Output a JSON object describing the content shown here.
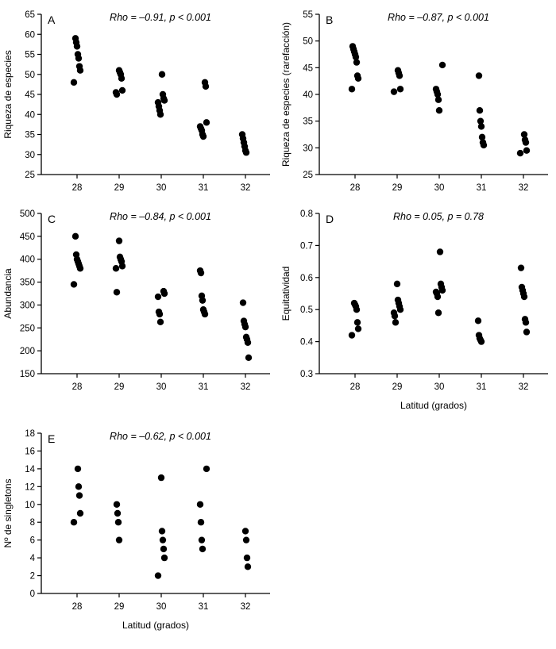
{
  "figure": {
    "background": "#ffffff",
    "dot_color": "#000000",
    "axis_color": "#000000"
  },
  "chart_data": [
    {
      "type": "scatter",
      "panel_label": "A",
      "annotation": "Rho = –0.91, p < 0.001",
      "ylabel": "Riqueza de especies",
      "xlabel": "",
      "ylim": [
        25,
        65
      ],
      "ytick_step": 5,
      "y_decimals": 0,
      "x_categories": [
        28,
        29,
        30,
        31,
        32
      ],
      "points": [
        [
          28,
          48
        ],
        [
          28,
          51
        ],
        [
          28,
          52
        ],
        [
          28,
          54
        ],
        [
          28,
          55
        ],
        [
          28,
          57
        ],
        [
          28,
          58
        ],
        [
          28,
          59
        ],
        [
          29,
          45
        ],
        [
          29,
          45.5
        ],
        [
          29,
          46
        ],
        [
          29,
          49
        ],
        [
          29,
          50
        ],
        [
          29,
          50.5
        ],
        [
          29,
          51
        ],
        [
          30,
          40
        ],
        [
          30,
          41
        ],
        [
          30,
          42
        ],
        [
          30,
          43
        ],
        [
          30,
          43.5
        ],
        [
          30,
          44
        ],
        [
          30,
          45
        ],
        [
          30,
          50
        ],
        [
          31,
          34.5
        ],
        [
          31,
          35
        ],
        [
          31,
          36
        ],
        [
          31,
          36.5
        ],
        [
          31,
          37
        ],
        [
          31,
          38
        ],
        [
          31,
          47
        ],
        [
          31,
          48
        ],
        [
          32,
          30.5
        ],
        [
          32,
          31
        ],
        [
          32,
          32
        ],
        [
          32,
          33
        ],
        [
          32,
          34
        ],
        [
          32,
          35
        ]
      ]
    },
    {
      "type": "scatter",
      "panel_label": "B",
      "annotation": "Rho = –0.87, p < 0.001",
      "ylabel": "Riqueza de especies (rarefacción)",
      "xlabel": "",
      "ylim": [
        25,
        55
      ],
      "ytick_step": 5,
      "y_decimals": 0,
      "x_categories": [
        28,
        29,
        30,
        31,
        32
      ],
      "points": [
        [
          28,
          41
        ],
        [
          28,
          43
        ],
        [
          28,
          43.5
        ],
        [
          28,
          46
        ],
        [
          28,
          47
        ],
        [
          28,
          47.5
        ],
        [
          28,
          48
        ],
        [
          28,
          48.5
        ],
        [
          28,
          49
        ],
        [
          29,
          40.5
        ],
        [
          29,
          41
        ],
        [
          29,
          43.5
        ],
        [
          29,
          44
        ],
        [
          29,
          44.5
        ],
        [
          30,
          37
        ],
        [
          30,
          39
        ],
        [
          30,
          40
        ],
        [
          30,
          40.5
        ],
        [
          30,
          41
        ],
        [
          30,
          45.5
        ],
        [
          31,
          30.5
        ],
        [
          31,
          31
        ],
        [
          31,
          32
        ],
        [
          31,
          34
        ],
        [
          31,
          35
        ],
        [
          31,
          37
        ],
        [
          31,
          43.5
        ],
        [
          32,
          29
        ],
        [
          32,
          29.5
        ],
        [
          32,
          31
        ],
        [
          32,
          31.5
        ],
        [
          32,
          32.5
        ]
      ]
    },
    {
      "type": "scatter",
      "panel_label": "C",
      "annotation": "Rho = –0.84, p < 0.001",
      "ylabel": "Abundancia",
      "xlabel": "",
      "ylim": [
        150,
        500
      ],
      "ytick_step": 50,
      "y_decimals": 0,
      "x_categories": [
        28,
        29,
        30,
        31,
        32
      ],
      "points": [
        [
          28,
          345
        ],
        [
          28,
          380
        ],
        [
          28,
          385
        ],
        [
          28,
          390
        ],
        [
          28,
          395
        ],
        [
          28,
          400
        ],
        [
          28,
          410
        ],
        [
          28,
          450
        ],
        [
          29,
          328
        ],
        [
          29,
          380
        ],
        [
          29,
          385
        ],
        [
          29,
          395
        ],
        [
          29,
          400
        ],
        [
          29,
          405
        ],
        [
          29,
          440
        ],
        [
          30,
          263
        ],
        [
          30,
          280
        ],
        [
          30,
          285
        ],
        [
          30,
          318
        ],
        [
          30,
          325
        ],
        [
          30,
          330
        ],
        [
          31,
          280
        ],
        [
          31,
          285
        ],
        [
          31,
          290
        ],
        [
          31,
          310
        ],
        [
          31,
          320
        ],
        [
          31,
          370
        ],
        [
          31,
          375
        ],
        [
          32,
          185
        ],
        [
          32,
          218
        ],
        [
          32,
          225
        ],
        [
          32,
          230
        ],
        [
          32,
          252
        ],
        [
          32,
          258
        ],
        [
          32,
          265
        ],
        [
          32,
          305
        ]
      ]
    },
    {
      "type": "scatter",
      "panel_label": "D",
      "annotation": "Rho = 0.05, p = 0.78",
      "ylabel": "Equitatividad",
      "xlabel": "Latitud (grados)",
      "ylim": [
        0.3,
        0.8
      ],
      "ytick_step": 0.1,
      "y_decimals": 1,
      "x_categories": [
        28,
        29,
        30,
        31,
        32
      ],
      "points": [
        [
          28,
          0.42
        ],
        [
          28,
          0.44
        ],
        [
          28,
          0.46
        ],
        [
          28,
          0.5
        ],
        [
          28,
          0.51
        ],
        [
          28,
          0.515
        ],
        [
          28,
          0.52
        ],
        [
          29,
          0.46
        ],
        [
          29,
          0.48
        ],
        [
          29,
          0.49
        ],
        [
          29,
          0.5
        ],
        [
          29,
          0.51
        ],
        [
          29,
          0.52
        ],
        [
          29,
          0.53
        ],
        [
          29,
          0.58
        ],
        [
          30,
          0.49
        ],
        [
          30,
          0.54
        ],
        [
          30,
          0.55
        ],
        [
          30,
          0.555
        ],
        [
          30,
          0.56
        ],
        [
          30,
          0.57
        ],
        [
          30,
          0.58
        ],
        [
          30,
          0.68
        ],
        [
          31,
          0.4
        ],
        [
          31,
          0.405
        ],
        [
          31,
          0.41
        ],
        [
          31,
          0.42
        ],
        [
          31,
          0.465
        ],
        [
          32,
          0.43
        ],
        [
          32,
          0.46
        ],
        [
          32,
          0.47
        ],
        [
          32,
          0.54
        ],
        [
          32,
          0.55
        ],
        [
          32,
          0.56
        ],
        [
          32,
          0.57
        ],
        [
          32,
          0.63
        ]
      ]
    },
    {
      "type": "scatter",
      "panel_label": "E",
      "annotation": "Rho = –0.62, p < 0.001",
      "ylabel": "Nº de singletons",
      "xlabel": "Latitud (grados)",
      "ylim": [
        0,
        18
      ],
      "ytick_step": 2,
      "y_decimals": 0,
      "x_categories": [
        28,
        29,
        30,
        31,
        32
      ],
      "points": [
        [
          28,
          8
        ],
        [
          28,
          9
        ],
        [
          28,
          11
        ],
        [
          28,
          12
        ],
        [
          28,
          14
        ],
        [
          29,
          6
        ],
        [
          29,
          8
        ],
        [
          29,
          9
        ],
        [
          29,
          10
        ],
        [
          30,
          2
        ],
        [
          30,
          4
        ],
        [
          30,
          5
        ],
        [
          30,
          6
        ],
        [
          30,
          7
        ],
        [
          30,
          13
        ],
        [
          31,
          5
        ],
        [
          31,
          6
        ],
        [
          31,
          8
        ],
        [
          31,
          10
        ],
        [
          31,
          14
        ],
        [
          32,
          3
        ],
        [
          32,
          4
        ],
        [
          32,
          6
        ],
        [
          32,
          7
        ]
      ]
    }
  ]
}
